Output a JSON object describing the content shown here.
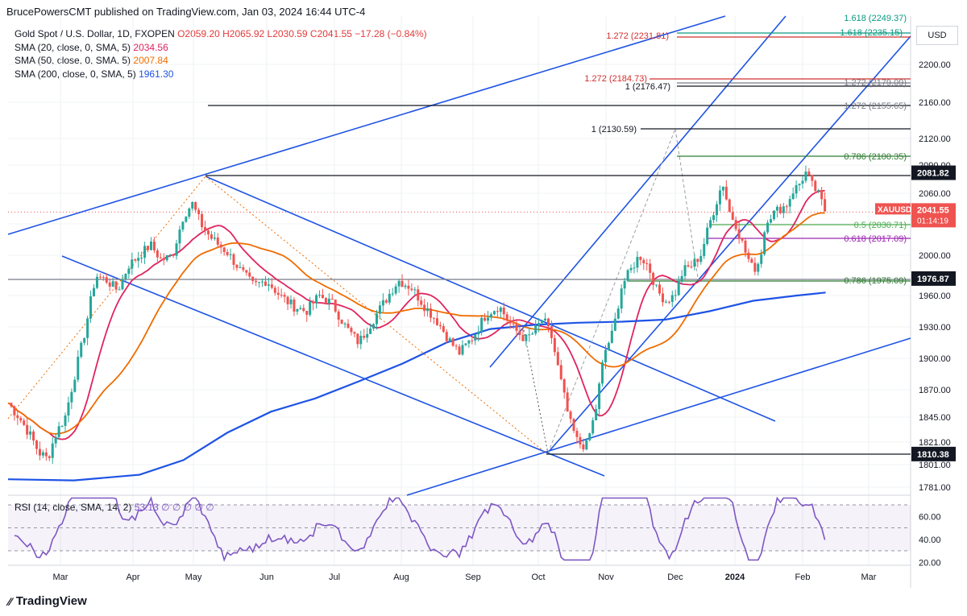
{
  "header": {
    "title": "BrucePowersCMT published on TradingView.com, Jan 03, 2024 16:44 UTC-4"
  },
  "legend": {
    "symbol": "Gold Spot / U.S. Dollar, 1D, FXOPEN",
    "ohlc": "O2059.20  H2065.92  L2030.59  C2041.55  −17.28 (−0.84%)",
    "sma20_label": "SMA (20, close, 0, SMA, 5)",
    "sma20_value": "2034.56",
    "sma50_label": "SMA (50, close, 0, SMA, 5)",
    "sma50_value": "2007.84",
    "sma200_label": "SMA (200, close, 0, SMA, 5)",
    "sma200_value": "1961.30"
  },
  "currency_button": "USD",
  "rsi": {
    "label": "RSI (14, close, SMA, 14, 2)",
    "values_text": "53.13  ∅  ∅  ∅  ∅  ∅",
    "ticks": [
      "60.00",
      "40.00",
      "20.00"
    ]
  },
  "footer": {
    "brand": "TradingView"
  },
  "colors": {
    "up": "#26a69a",
    "down": "#ef5350",
    "sma20": "#e0245e",
    "sma50": "#ef6c00",
    "sma200": "#1e53e5",
    "channel": "#1e53e5",
    "rsi": "#7e57c2"
  },
  "chart_data": {
    "type": "candlestick",
    "title": "Gold Spot / U.S. Dollar, 1D, FXOPEN",
    "ylabel": "USD",
    "ylim": [
      1760,
      2260
    ],
    "x_ticks": [
      "Mar",
      "Apr",
      "May",
      "Jun",
      "Jul",
      "Aug",
      "Sep",
      "Oct",
      "Nov",
      "Dec",
      "2024",
      "Feb",
      "Mar"
    ],
    "y_ticks": [
      "2200.00",
      "2160.00",
      "2120.00",
      "2090.00",
      "2060.00",
      "2030.00",
      "2000.00",
      "1960.00",
      "1930.00",
      "1900.00",
      "1870.00",
      "1845.00",
      "1821.00",
      "1801.00",
      "1781.00"
    ],
    "last_price_label": "XAUUSD",
    "last_price": "2041.55",
    "countdown": "01:14:19",
    "price_markers": [
      {
        "value": "2081.82",
        "price": 2081.82
      },
      {
        "value": "1976.87",
        "price": 1976.87
      },
      {
        "value": "1810.38",
        "price": 1810.38
      }
    ],
    "fib_labels": [
      {
        "text": "1.272 (2231.81)",
        "price": 2231.81,
        "color": "#d32f2f"
      },
      {
        "text": "1.618 (2235.15)",
        "price": 2235.15,
        "color": "#089981"
      },
      {
        "text": "1.618 (2249.37)",
        "price": 2249.37,
        "color": "#089981"
      },
      {
        "text": "1.272 (2184.73)",
        "price": 2184.73,
        "color": "#d32f2f"
      },
      {
        "text": "1.272 (2179.09)",
        "price": 2179.09,
        "color": "#787b86"
      },
      {
        "text": "1 (2176.47)",
        "price": 2176.47,
        "color": "#131722"
      },
      {
        "text": "1.272 (2155.65)",
        "price": 2155.65,
        "color": "#787b86"
      },
      {
        "text": "1 (2130.59)",
        "price": 2130.59,
        "color": "#131722"
      },
      {
        "text": "0.786 (2100.35)",
        "price": 2100.35,
        "color": "#2e7d32"
      },
      {
        "text": "0.5 (2030.71)",
        "price": 2030.71,
        "color": "#4caf50"
      },
      {
        "text": "0.618 (2017.09)",
        "price": 2017.09,
        "color": "#9c27b0"
      },
      {
        "text": "0.786 (1975.09)",
        "price": 1975.09,
        "color": "#2e7d32"
      }
    ],
    "series": [
      {
        "name": "SMA (20, close, 0, SMA, 5)",
        "last": 2034.56
      },
      {
        "name": "SMA (50, close, 0, SMA, 5)",
        "last": 2007.84
      },
      {
        "name": "SMA (200, close, 0, SMA, 5)",
        "last": 1961.3
      }
    ],
    "swing_points": [
      {
        "date": "Feb-28",
        "price": 1804
      },
      {
        "date": "May-04",
        "price": 2081
      },
      {
        "date": "Oct-06",
        "price": 1810
      },
      {
        "date": "Oct-27",
        "price": 2009
      },
      {
        "date": "Dec-04",
        "price": 2135
      },
      {
        "date": "Dec-13",
        "price": 1973
      },
      {
        "date": "Dec-28",
        "price": 2088
      },
      {
        "date": "Jan-03",
        "price": 2041
      }
    ]
  }
}
